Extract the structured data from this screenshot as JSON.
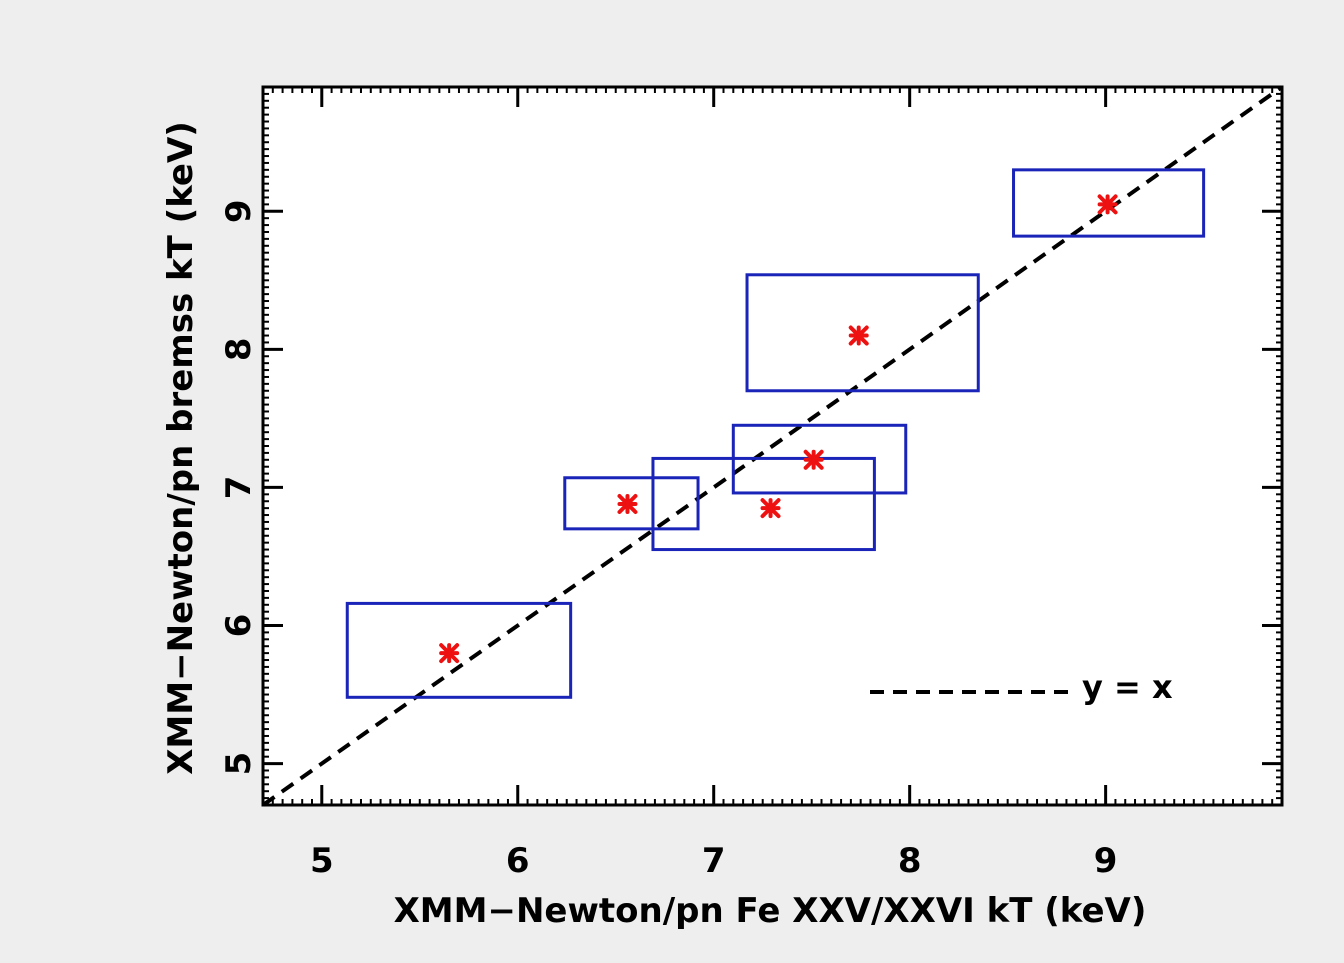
{
  "chart_data": {
    "type": "scatter",
    "xlabel": "XMM−Newton/pn Fe XXV/XXVI kT (keV)",
    "ylabel": "XMM−Newton/pn bremss kT (keV)",
    "xlim": [
      4.7,
      9.9
    ],
    "ylim": [
      4.7,
      9.9
    ],
    "xticks": [
      5,
      6,
      7,
      8,
      9
    ],
    "yticks": [
      5,
      6,
      7,
      8,
      9
    ],
    "grid": false,
    "legend": {
      "position": "bottom-right",
      "label": "y = x"
    },
    "reference_line": {
      "type": "y=x",
      "style": "dashed",
      "color": "#000000"
    },
    "marker_color": "#ee1111",
    "box_color": "#1a24b8",
    "points": [
      {
        "x": 5.65,
        "y": 5.8,
        "x_err": [
          5.13,
          6.27
        ],
        "y_err": [
          5.48,
          6.16
        ]
      },
      {
        "x": 6.56,
        "y": 6.88,
        "x_err": [
          6.24,
          6.92
        ],
        "y_err": [
          6.7,
          7.07
        ]
      },
      {
        "x": 7.29,
        "y": 6.85,
        "x_err": [
          6.69,
          7.82
        ],
        "y_err": [
          6.55,
          7.21
        ]
      },
      {
        "x": 7.51,
        "y": 7.2,
        "x_err": [
          7.1,
          7.98
        ],
        "y_err": [
          6.96,
          7.45
        ]
      },
      {
        "x": 7.74,
        "y": 8.1,
        "x_err": [
          7.17,
          8.35
        ],
        "y_err": [
          7.7,
          8.54
        ]
      },
      {
        "x": 9.01,
        "y": 9.05,
        "x_err": [
          8.53,
          9.5
        ],
        "y_err": [
          8.82,
          9.3
        ]
      }
    ]
  }
}
